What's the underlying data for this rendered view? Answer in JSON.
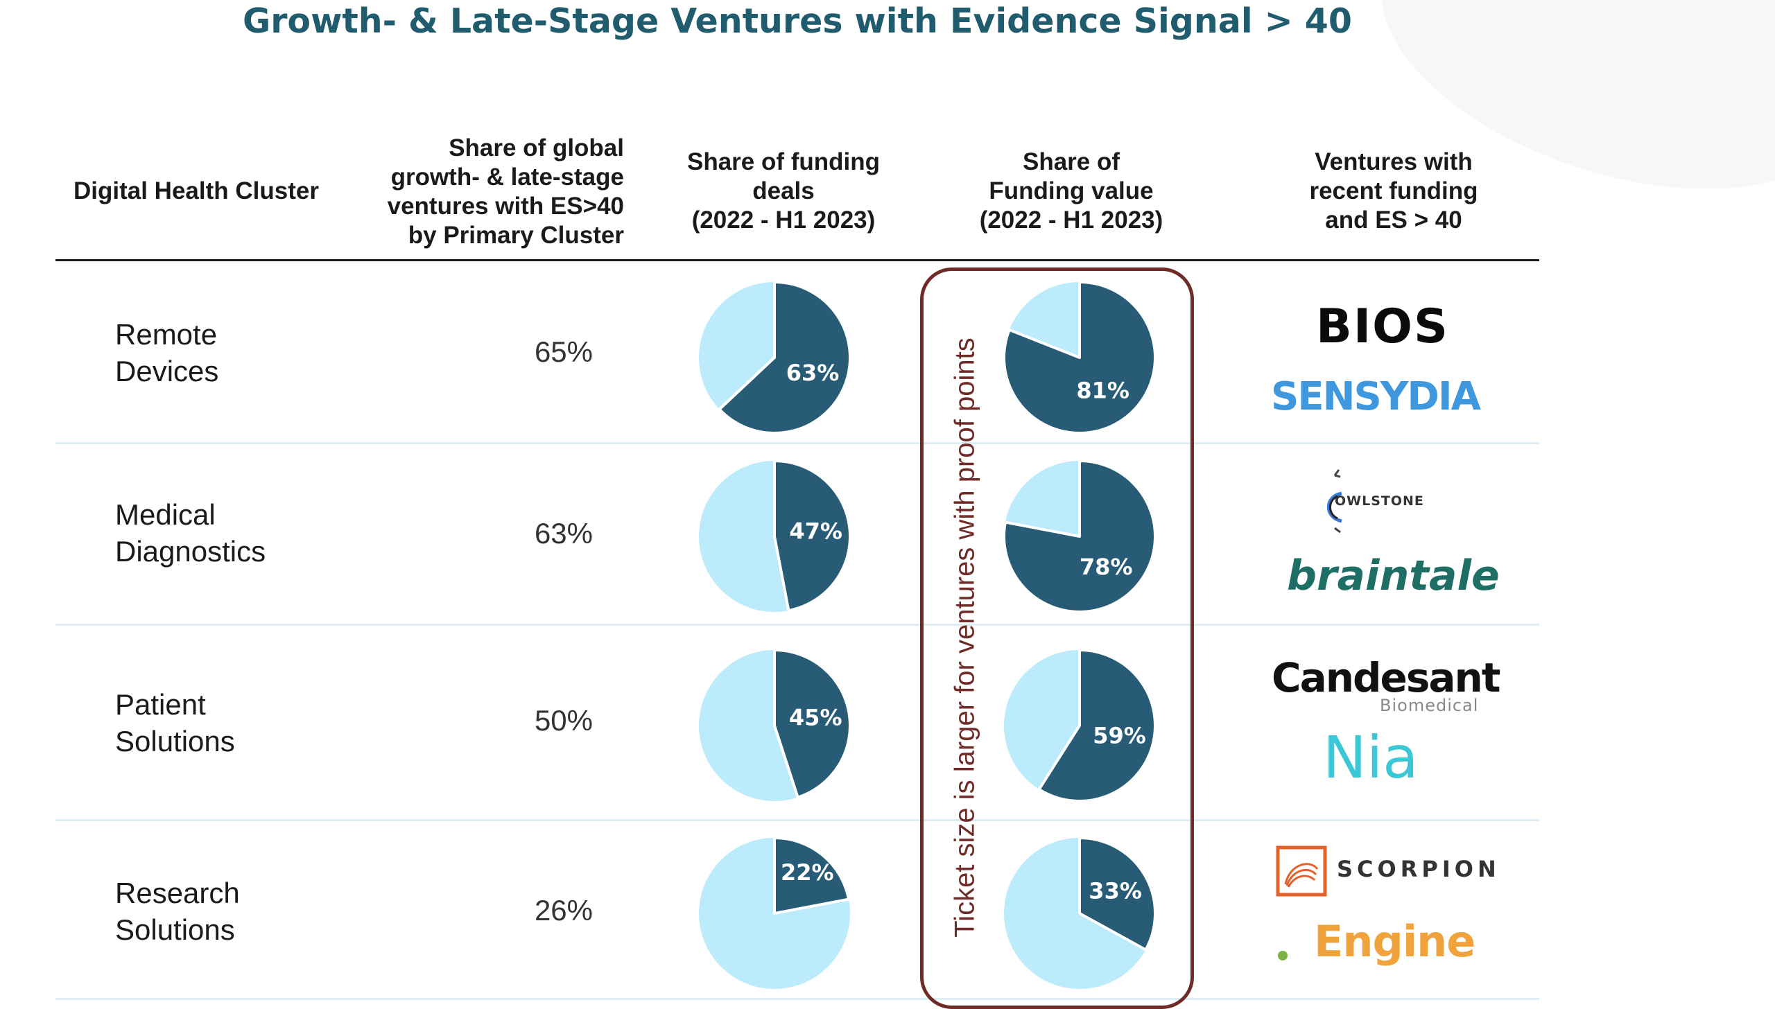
{
  "title": "Growth- & Late-Stage Ventures with Evidence Signal > 40",
  "headers": {
    "cluster": [
      "Digital Health Cluster"
    ],
    "share_global": [
      "Share of global",
      "growth- & late-stage",
      "ventures with ES>40",
      "by Primary Cluster"
    ],
    "share_deals": [
      "Share of funding",
      "deals",
      "(2022 - H1 2023)"
    ],
    "share_value": [
      "Share of",
      "Funding value",
      "(2022 - H1 2023)"
    ],
    "ventures": [
      "Ventures with",
      "recent funding",
      "and ES > 40"
    ]
  },
  "callout": "Ticket size is larger for ventures with proof points",
  "colors": {
    "dark": "#285c76",
    "light": "#bcebfb",
    "title": "#215b6e",
    "callout": "#6e2b27"
  },
  "chart_data": {
    "type": "pie",
    "title": "Growth- & Late-Stage Ventures with Evidence Signal > 40",
    "categories": [
      "Remote Devices",
      "Medical Diagnostics",
      "Patient Solutions",
      "Research Solutions"
    ],
    "share_of_global_ventures": [
      "65%",
      "63%",
      "50%",
      "26%"
    ],
    "series": [
      {
        "name": "Share of funding deals (2022 - H1 2023)",
        "values": [
          63,
          47,
          45,
          22
        ],
        "labels": [
          "63%",
          "47%",
          "45%",
          "22%"
        ]
      },
      {
        "name": "Share of Funding value (2022 - H1 2023)",
        "values": [
          81,
          78,
          59,
          33
        ],
        "labels": [
          "81%",
          "78%",
          "59%",
          "33%"
        ]
      }
    ]
  },
  "rows": [
    {
      "label": [
        "Remote",
        "Devices"
      ],
      "share": "65%",
      "logos": [
        "BIOS",
        "SENSYDIA"
      ]
    },
    {
      "label": [
        "Medical",
        "Diagnostics"
      ],
      "share": "63%",
      "logos": [
        "OWLSTONE",
        "braintale"
      ]
    },
    {
      "label": [
        "Patient",
        "Solutions"
      ],
      "share": "50%",
      "logos": [
        "Candesant",
        "Biomedical",
        "Nia"
      ]
    },
    {
      "label": [
        "Research",
        "Solutions"
      ],
      "share": "26%",
      "logos": [
        "SCORPION",
        "Engine"
      ]
    }
  ],
  "icons": [
    "owlstone-logo-icon",
    "scorpion-logo-icon"
  ]
}
